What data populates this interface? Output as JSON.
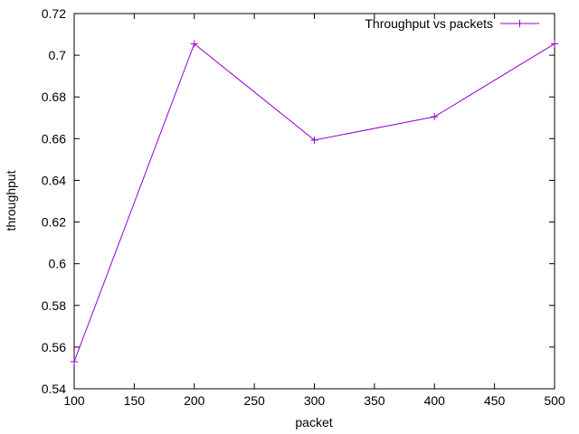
{
  "chart_data": {
    "type": "line",
    "title": "",
    "xlabel": "packet",
    "ylabel": "throughput",
    "xlim": [
      100,
      500
    ],
    "ylim": [
      0.54,
      0.72
    ],
    "x_ticks": [
      100,
      150,
      200,
      250,
      300,
      350,
      400,
      450,
      500
    ],
    "y_ticks": [
      0.54,
      0.56,
      0.58,
      0.6,
      0.62,
      0.64,
      0.66,
      0.68,
      0.7,
      0.72
    ],
    "y_tick_labels": [
      "0.54",
      "0.56",
      "0.58",
      "0.6",
      "0.62",
      "0.64",
      "0.66",
      "0.68",
      "0.7",
      "0.72"
    ],
    "grid": false,
    "legend_position": "top-right",
    "series": [
      {
        "name": "Throughput vs packets",
        "color": "#9400d3",
        "marker": "plus",
        "x": [
          100,
          200,
          300,
          400,
          500
        ],
        "y": [
          0.553,
          0.7055,
          0.6593,
          0.6705,
          0.7055
        ]
      }
    ]
  }
}
